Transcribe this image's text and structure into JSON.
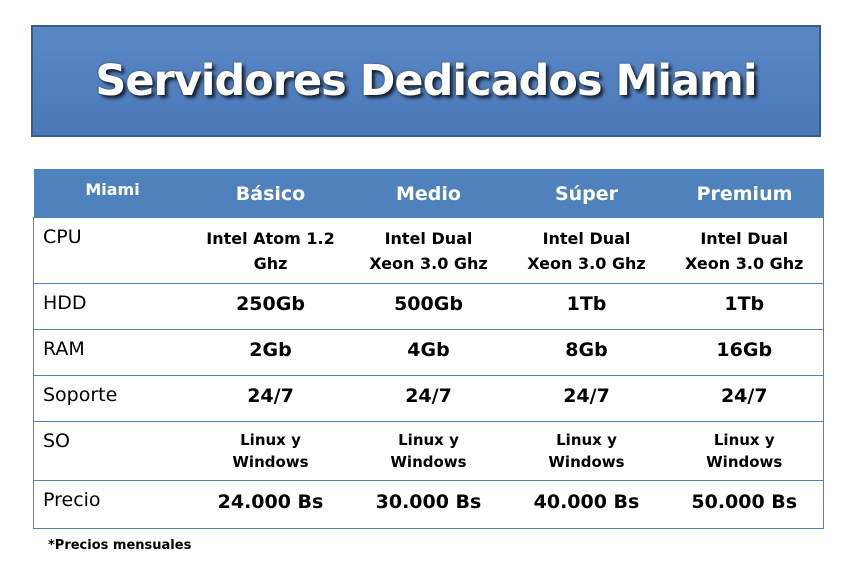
{
  "banner": {
    "title": "Servidores Dedicados Miami"
  },
  "table": {
    "corner": "Miami",
    "plans": [
      "Básico",
      "Medio",
      "Súper",
      "Premium"
    ],
    "rows": {
      "cpu": {
        "label": "CPU",
        "values": [
          [
            "Intel Atom 1.2",
            "Ghz"
          ],
          [
            "Intel Dual",
            "Xeon 3.0 Ghz"
          ],
          [
            "Intel Dual",
            "Xeon 3.0 Ghz"
          ],
          [
            "Intel Dual",
            "Xeon 3.0 Ghz"
          ]
        ]
      },
      "hdd": {
        "label": "HDD",
        "values": [
          "250Gb",
          "500Gb",
          "1Tb",
          "1Tb"
        ]
      },
      "ram": {
        "label": "RAM",
        "values": [
          "2Gb",
          "4Gb",
          "8Gb",
          "16Gb"
        ]
      },
      "soporte": {
        "label": "Soporte",
        "values": [
          "24/7",
          "24/7",
          "24/7",
          "24/7"
        ]
      },
      "so": {
        "label": "SO",
        "values": [
          [
            "Linux y",
            "Windows"
          ],
          [
            "Linux y",
            "Windows"
          ],
          [
            "Linux y",
            "Windows"
          ],
          [
            "Linux y",
            "Windows"
          ]
        ]
      },
      "precio": {
        "label": "Precio",
        "values": [
          "24.000 Bs",
          "30.000 Bs",
          "40.000 Bs",
          "50.000 Bs"
        ]
      }
    }
  },
  "footnote": "*Precios mensuales",
  "colors": {
    "banner": "#4f81bd",
    "header": "#4f81bd",
    "border": "#4f81bd"
  }
}
